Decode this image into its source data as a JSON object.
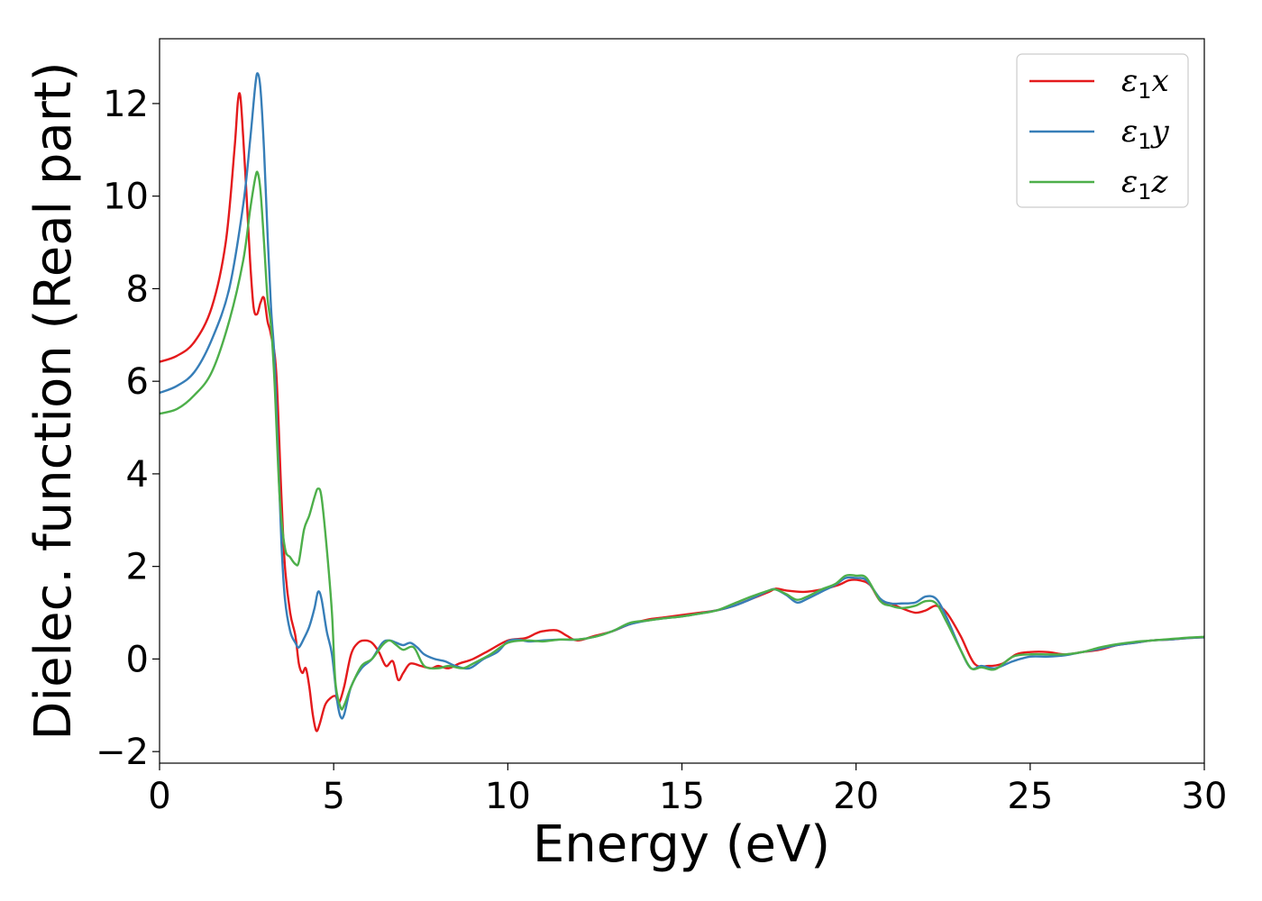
{
  "chart_data": {
    "type": "line",
    "title": "",
    "xlabel": "Energy (eV)",
    "ylabel": "Dielec. function (Real part)",
    "xlim": [
      0,
      30
    ],
    "ylim": [
      -2.25,
      13.4
    ],
    "xticks": [
      0,
      5,
      10,
      15,
      20,
      25,
      30
    ],
    "xtick_labels": [
      "0",
      "5",
      "10",
      "15",
      "20",
      "25",
      "30"
    ],
    "yticks": [
      -2,
      0,
      2,
      4,
      6,
      8,
      10,
      12
    ],
    "ytick_labels": [
      "−2",
      "0",
      "2",
      "4",
      "6",
      "8",
      "10",
      "12"
    ],
    "grid": false,
    "legend_position": "top-right",
    "series": [
      {
        "name_base": "ε",
        "name_sub": "1",
        "name_tail": "x",
        "color": "#e41a1c",
        "points": [
          [
            0,
            6.42
          ],
          [
            0.5,
            6.55
          ],
          [
            1.0,
            6.85
          ],
          [
            1.5,
            7.6
          ],
          [
            1.9,
            9.0
          ],
          [
            2.15,
            11.0
          ],
          [
            2.25,
            12.05
          ],
          [
            2.32,
            12.15
          ],
          [
            2.4,
            11.3
          ],
          [
            2.5,
            10.0
          ],
          [
            2.6,
            8.6
          ],
          [
            2.7,
            7.6
          ],
          [
            2.8,
            7.45
          ],
          [
            2.9,
            7.7
          ],
          [
            3.0,
            7.8
          ],
          [
            3.1,
            7.3
          ],
          [
            3.2,
            7.0
          ],
          [
            3.35,
            6.2
          ],
          [
            3.5,
            3.5
          ],
          [
            3.6,
            2.0
          ],
          [
            3.75,
            1.0
          ],
          [
            3.9,
            0.5
          ],
          [
            4.0,
            -0.1
          ],
          [
            4.1,
            -0.3
          ],
          [
            4.2,
            -0.2
          ],
          [
            4.3,
            -0.6
          ],
          [
            4.4,
            -1.2
          ],
          [
            4.5,
            -1.55
          ],
          [
            4.6,
            -1.4
          ],
          [
            4.75,
            -1.0
          ],
          [
            4.9,
            -0.85
          ],
          [
            5.05,
            -0.8
          ],
          [
            5.15,
            -0.95
          ],
          [
            5.3,
            -0.6
          ],
          [
            5.5,
            0.1
          ],
          [
            5.7,
            0.35
          ],
          [
            5.9,
            0.4
          ],
          [
            6.1,
            0.35
          ],
          [
            6.3,
            0.15
          ],
          [
            6.5,
            -0.15
          ],
          [
            6.7,
            -0.05
          ],
          [
            6.85,
            -0.45
          ],
          [
            7.0,
            -0.3
          ],
          [
            7.2,
            -0.1
          ],
          [
            7.5,
            -0.15
          ],
          [
            7.8,
            -0.2
          ],
          [
            8.0,
            -0.15
          ],
          [
            8.3,
            -0.2
          ],
          [
            8.6,
            -0.1
          ],
          [
            9.0,
            0.0
          ],
          [
            9.5,
            0.2
          ],
          [
            10.0,
            0.4
          ],
          [
            10.5,
            0.45
          ],
          [
            10.8,
            0.55
          ],
          [
            11.0,
            0.6
          ],
          [
            11.4,
            0.62
          ],
          [
            11.7,
            0.5
          ],
          [
            12.0,
            0.4
          ],
          [
            12.5,
            0.5
          ],
          [
            13.0,
            0.6
          ],
          [
            13.5,
            0.75
          ],
          [
            14.0,
            0.85
          ],
          [
            14.5,
            0.9
          ],
          [
            15.0,
            0.95
          ],
          [
            15.5,
            1.0
          ],
          [
            16.0,
            1.05
          ],
          [
            16.5,
            1.15
          ],
          [
            17.0,
            1.3
          ],
          [
            17.5,
            1.45
          ],
          [
            17.7,
            1.52
          ],
          [
            18.0,
            1.48
          ],
          [
            18.5,
            1.45
          ],
          [
            19.0,
            1.5
          ],
          [
            19.5,
            1.6
          ],
          [
            19.8,
            1.7
          ],
          [
            20.1,
            1.7
          ],
          [
            20.4,
            1.6
          ],
          [
            20.7,
            1.25
          ],
          [
            21.0,
            1.2
          ],
          [
            21.3,
            1.1
          ],
          [
            21.7,
            1.0
          ],
          [
            22.0,
            1.05
          ],
          [
            22.3,
            1.15
          ],
          [
            22.6,
            1.0
          ],
          [
            23.0,
            0.5
          ],
          [
            23.4,
            -0.1
          ],
          [
            23.8,
            -0.15
          ],
          [
            24.2,
            -0.1
          ],
          [
            24.6,
            0.1
          ],
          [
            25.0,
            0.15
          ],
          [
            25.5,
            0.15
          ],
          [
            26.0,
            0.1
          ],
          [
            26.5,
            0.15
          ],
          [
            27.0,
            0.2
          ],
          [
            27.5,
            0.3
          ],
          [
            28.0,
            0.35
          ],
          [
            28.5,
            0.4
          ],
          [
            29.0,
            0.42
          ],
          [
            29.5,
            0.45
          ],
          [
            30.0,
            0.47
          ]
        ]
      },
      {
        "name_base": "ε",
        "name_sub": "1",
        "name_tail": "y",
        "color": "#377eb8",
        "points": [
          [
            0,
            5.75
          ],
          [
            0.5,
            5.9
          ],
          [
            1.0,
            6.2
          ],
          [
            1.5,
            6.9
          ],
          [
            2.0,
            8.0
          ],
          [
            2.4,
            9.8
          ],
          [
            2.6,
            11.2
          ],
          [
            2.75,
            12.4
          ],
          [
            2.82,
            12.65
          ],
          [
            2.9,
            12.3
          ],
          [
            3.0,
            11.0
          ],
          [
            3.1,
            9.2
          ],
          [
            3.2,
            7.6
          ],
          [
            3.3,
            6.5
          ],
          [
            3.4,
            4.5
          ],
          [
            3.5,
            2.5
          ],
          [
            3.6,
            1.3
          ],
          [
            3.75,
            0.6
          ],
          [
            3.9,
            0.35
          ],
          [
            4.0,
            0.25
          ],
          [
            4.15,
            0.45
          ],
          [
            4.3,
            0.7
          ],
          [
            4.45,
            1.1
          ],
          [
            4.55,
            1.45
          ],
          [
            4.65,
            1.3
          ],
          [
            4.8,
            0.6
          ],
          [
            4.95,
            0.1
          ],
          [
            5.1,
            -0.9
          ],
          [
            5.2,
            -1.25
          ],
          [
            5.3,
            -1.2
          ],
          [
            5.5,
            -0.6
          ],
          [
            5.8,
            -0.2
          ],
          [
            6.1,
            0.0
          ],
          [
            6.4,
            0.35
          ],
          [
            6.6,
            0.4
          ],
          [
            6.8,
            0.35
          ],
          [
            7.0,
            0.3
          ],
          [
            7.2,
            0.35
          ],
          [
            7.4,
            0.25
          ],
          [
            7.6,
            0.1
          ],
          [
            7.9,
            0.0
          ],
          [
            8.2,
            -0.05
          ],
          [
            8.5,
            -0.15
          ],
          [
            8.9,
            -0.2
          ],
          [
            9.3,
            0.0
          ],
          [
            9.7,
            0.15
          ],
          [
            10.0,
            0.38
          ],
          [
            10.3,
            0.42
          ],
          [
            10.6,
            0.38
          ],
          [
            11.0,
            0.4
          ],
          [
            11.5,
            0.42
          ],
          [
            12.0,
            0.42
          ],
          [
            12.5,
            0.48
          ],
          [
            13.0,
            0.6
          ],
          [
            13.5,
            0.75
          ],
          [
            14.0,
            0.83
          ],
          [
            14.5,
            0.88
          ],
          [
            15.0,
            0.92
          ],
          [
            15.5,
            0.98
          ],
          [
            16.0,
            1.05
          ],
          [
            16.5,
            1.15
          ],
          [
            17.0,
            1.3
          ],
          [
            17.5,
            1.48
          ],
          [
            17.7,
            1.5
          ],
          [
            18.0,
            1.38
          ],
          [
            18.3,
            1.22
          ],
          [
            18.6,
            1.3
          ],
          [
            19.0,
            1.45
          ],
          [
            19.4,
            1.6
          ],
          [
            19.7,
            1.75
          ],
          [
            20.0,
            1.75
          ],
          [
            20.3,
            1.7
          ],
          [
            20.7,
            1.3
          ],
          [
            21.0,
            1.2
          ],
          [
            21.3,
            1.2
          ],
          [
            21.7,
            1.22
          ],
          [
            22.0,
            1.35
          ],
          [
            22.3,
            1.3
          ],
          [
            22.6,
            0.9
          ],
          [
            23.0,
            0.2
          ],
          [
            23.3,
            -0.2
          ],
          [
            23.6,
            -0.15
          ],
          [
            24.0,
            -0.2
          ],
          [
            24.5,
            -0.05
          ],
          [
            25.0,
            0.05
          ],
          [
            25.5,
            0.05
          ],
          [
            26.0,
            0.08
          ],
          [
            26.5,
            0.15
          ],
          [
            27.0,
            0.22
          ],
          [
            27.5,
            0.3
          ],
          [
            28.0,
            0.35
          ],
          [
            28.5,
            0.4
          ],
          [
            29.0,
            0.42
          ],
          [
            29.5,
            0.45
          ],
          [
            30.0,
            0.47
          ]
        ]
      },
      {
        "name_base": "ε",
        "name_sub": "1",
        "name_tail": "z",
        "color": "#4daf4a",
        "points": [
          [
            0,
            5.3
          ],
          [
            0.5,
            5.4
          ],
          [
            1.0,
            5.7
          ],
          [
            1.5,
            6.2
          ],
          [
            2.0,
            7.3
          ],
          [
            2.4,
            8.6
          ],
          [
            2.6,
            9.7
          ],
          [
            2.75,
            10.4
          ],
          [
            2.82,
            10.5
          ],
          [
            2.9,
            10.1
          ],
          [
            3.0,
            9.0
          ],
          [
            3.1,
            7.8
          ],
          [
            3.2,
            7.2
          ],
          [
            3.3,
            6.0
          ],
          [
            3.45,
            3.5
          ],
          [
            3.6,
            2.4
          ],
          [
            3.75,
            2.2
          ],
          [
            3.9,
            2.05
          ],
          [
            4.0,
            2.1
          ],
          [
            4.15,
            2.8
          ],
          [
            4.3,
            3.1
          ],
          [
            4.45,
            3.5
          ],
          [
            4.55,
            3.68
          ],
          [
            4.65,
            3.5
          ],
          [
            4.8,
            2.4
          ],
          [
            4.95,
            1.0
          ],
          [
            5.05,
            -0.5
          ],
          [
            5.2,
            -1.05
          ],
          [
            5.3,
            -1.0
          ],
          [
            5.5,
            -0.6
          ],
          [
            5.8,
            -0.15
          ],
          [
            6.1,
            0.0
          ],
          [
            6.4,
            0.3
          ],
          [
            6.6,
            0.4
          ],
          [
            6.8,
            0.3
          ],
          [
            7.0,
            0.2
          ],
          [
            7.3,
            0.25
          ],
          [
            7.6,
            -0.15
          ],
          [
            8.0,
            -0.2
          ],
          [
            8.3,
            -0.15
          ],
          [
            8.7,
            -0.2
          ],
          [
            9.0,
            -0.1
          ],
          [
            9.5,
            0.1
          ],
          [
            10.0,
            0.35
          ],
          [
            10.5,
            0.4
          ],
          [
            11.0,
            0.38
          ],
          [
            11.5,
            0.42
          ],
          [
            12.0,
            0.42
          ],
          [
            12.5,
            0.48
          ],
          [
            13.0,
            0.6
          ],
          [
            13.5,
            0.78
          ],
          [
            14.0,
            0.83
          ],
          [
            14.5,
            0.88
          ],
          [
            15.0,
            0.92
          ],
          [
            15.5,
            0.98
          ],
          [
            16.0,
            1.05
          ],
          [
            16.5,
            1.2
          ],
          [
            17.0,
            1.35
          ],
          [
            17.5,
            1.48
          ],
          [
            17.7,
            1.5
          ],
          [
            18.0,
            1.4
          ],
          [
            18.3,
            1.28
          ],
          [
            18.6,
            1.35
          ],
          [
            19.0,
            1.5
          ],
          [
            19.4,
            1.62
          ],
          [
            19.7,
            1.8
          ],
          [
            20.0,
            1.8
          ],
          [
            20.3,
            1.75
          ],
          [
            20.7,
            1.25
          ],
          [
            21.0,
            1.15
          ],
          [
            21.3,
            1.1
          ],
          [
            21.7,
            1.15
          ],
          [
            22.0,
            1.25
          ],
          [
            22.3,
            1.2
          ],
          [
            22.6,
            0.8
          ],
          [
            23.0,
            0.2
          ],
          [
            23.3,
            -0.2
          ],
          [
            23.6,
            -0.18
          ],
          [
            24.0,
            -0.22
          ],
          [
            24.5,
            0.05
          ],
          [
            25.0,
            0.1
          ],
          [
            25.5,
            0.1
          ],
          [
            26.0,
            0.1
          ],
          [
            26.5,
            0.15
          ],
          [
            27.0,
            0.25
          ],
          [
            27.5,
            0.32
          ],
          [
            28.0,
            0.37
          ],
          [
            28.5,
            0.4
          ],
          [
            29.0,
            0.43
          ],
          [
            29.5,
            0.46
          ],
          [
            30.0,
            0.48
          ]
        ]
      }
    ]
  }
}
